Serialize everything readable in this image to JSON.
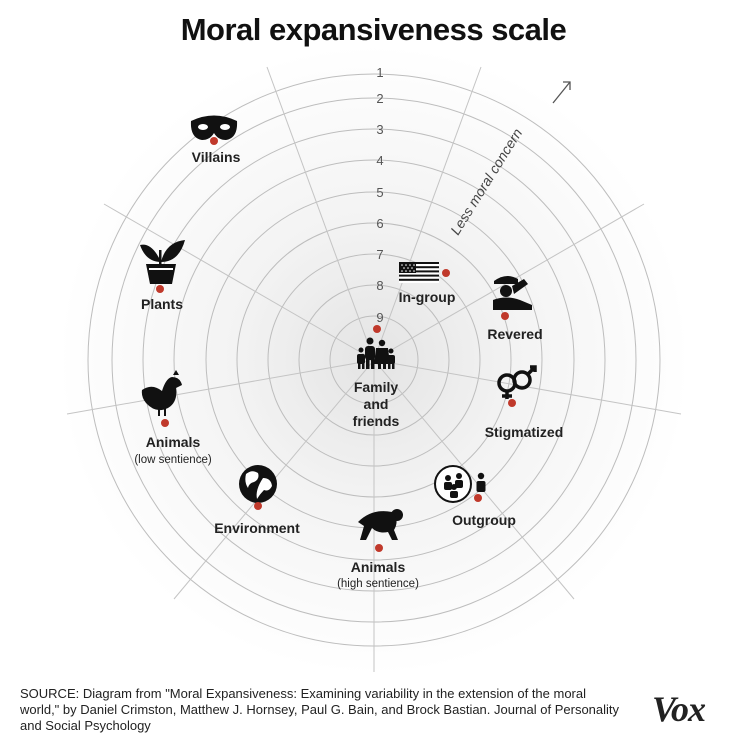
{
  "title": "Moral expansiveness scale",
  "ring_numbers": [
    "1",
    "2",
    "3",
    "4",
    "5",
    "6",
    "7",
    "8",
    "9"
  ],
  "axis_label": "Less moral concern",
  "center": {
    "line1": "Family",
    "line2": "and",
    "line3": "friends"
  },
  "groups": {
    "villains": {
      "label": "Villains",
      "icon": "mask-icon"
    },
    "plants": {
      "label": "Plants",
      "icon": "potted-plant-icon"
    },
    "animals_low": {
      "label": "Animals",
      "sub": "(low sentience)",
      "icon": "chicken-icon"
    },
    "environment": {
      "label": "Environment",
      "icon": "globe-icon"
    },
    "animals_high": {
      "label": "Animals",
      "sub": "(high sentience)",
      "icon": "chimpanzee-icon"
    },
    "outgroup": {
      "label": "Outgroup",
      "icon": "outgroup-people-icon"
    },
    "stigmatized": {
      "label": "Stigmatized",
      "icon": "gender-symbols-icon"
    },
    "revered": {
      "label": "Revered",
      "icon": "saluting-soldier-icon"
    },
    "ingroup": {
      "label": "In-group",
      "icon": "us-flag-icon"
    }
  },
  "source": "SOURCE: Diagram from \"Moral Expansiveness: Examining variability in the extension of the moral world,\" by Daniel Crimston, Matthew J. Hornsey, Paul G. Bain, and Brock Bastian. Journal of Personality and Social Psychology",
  "brand": "Vox",
  "colors": {
    "dot": "#c0392b",
    "ring": "#bbbbbb",
    "text": "#111111"
  }
}
